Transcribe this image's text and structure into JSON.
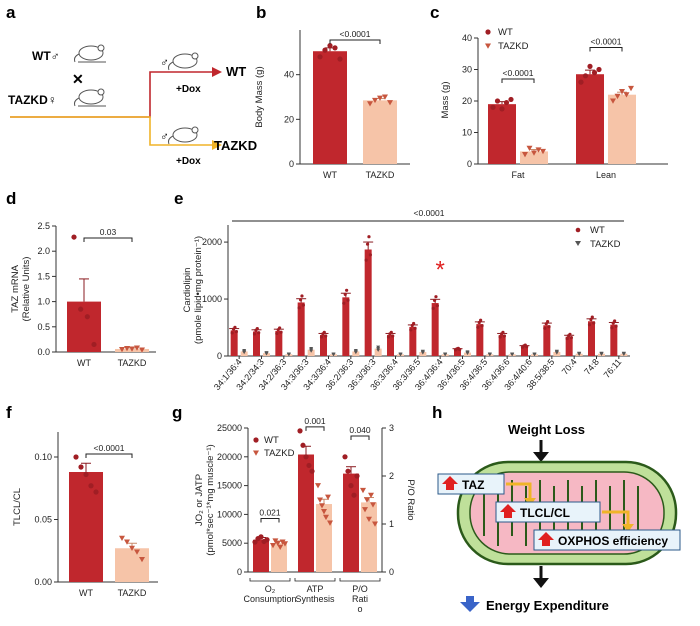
{
  "colors": {
    "wt": "#c0272d",
    "taz": "#f6c4a8",
    "wt_dot": "#a01e24",
    "taz_dot": "#c7563e",
    "mito_fill": "#bfe09a",
    "mito_stroke": "#2b5a1a",
    "mito_inner": "#f6b8c4",
    "red_arrow": "#e02020",
    "yellow_arrow": "#f0b428",
    "blue_arrow": "#3a64c8"
  },
  "panel_labels": {
    "a": "a",
    "b": "b",
    "c": "c",
    "d": "d",
    "e": "e",
    "f": "f",
    "g": "g",
    "h": "h"
  },
  "panel_a": {
    "wt_parent": "WT♂",
    "cross": "✕",
    "taz_parent": "TAZKD♀",
    "offspring_wt_symbol": "♂",
    "offspring_wt": "WT",
    "offspring_taz_symbol": "♂",
    "offspring_taz": "TAZKD",
    "dox_top": "+Dox",
    "dox_bottom": "+Dox"
  },
  "chart_data": [
    {
      "id": "b",
      "type": "bar",
      "categories": [
        "WT",
        "TAZKD"
      ],
      "values": [
        50.5,
        28.5
      ],
      "errors": [
        1.5,
        0.8
      ],
      "points": [
        [
          48,
          51,
          53,
          52,
          47
        ],
        [
          27,
          28.5,
          29.5,
          30,
          27.5
        ]
      ],
      "ylabel": "Body Mass (g)",
      "ylim": [
        0,
        60
      ],
      "yticks": [
        0,
        20,
        40
      ],
      "pvalues": [
        {
          "text": "<0.0001",
          "from": 0,
          "to": 1
        }
      ]
    },
    {
      "id": "c",
      "type": "bar",
      "categories": [
        "Fat",
        "Lean"
      ],
      "series": [
        {
          "name": "WT",
          "values": [
            19,
            28.5
          ],
          "errors": [
            0.8,
            1.3
          ],
          "points": [
            [
              18,
              20,
              17.5,
              19.5,
              20.5
            ],
            [
              26,
              28,
              31,
              29,
              30
            ]
          ]
        },
        {
          "name": "TAZKD",
          "values": [
            4,
            22
          ],
          "errors": [
            0.6,
            0.8
          ],
          "points": [
            [
              3,
              5,
              3.5,
              4.5,
              4
            ],
            [
              20,
              21.5,
              23,
              22,
              24
            ]
          ]
        }
      ],
      "ylabel": "Mass (g)",
      "ylim": [
        0,
        40
      ],
      "yticks": [
        0,
        10,
        20,
        30,
        40
      ],
      "legend": "top-left",
      "pvalues": [
        {
          "text": "<0.0001",
          "group": 0
        },
        {
          "text": "<0.0001",
          "group": 1
        }
      ]
    },
    {
      "id": "d",
      "type": "bar",
      "categories": [
        "WT",
        "TAZKD"
      ],
      "values": [
        1.0,
        0.06
      ],
      "errors": [
        0.45,
        0.02
      ],
      "points": [
        [
          2.28,
          0.85,
          0.7,
          0.15
        ],
        [
          0.05,
          0.07,
          0.06,
          0.08,
          0.04
        ]
      ],
      "ylabel": "TAZ mRNA\n(Relative Units)",
      "ylim": [
        0,
        2.5
      ],
      "yticks": [
        0.0,
        0.5,
        1.0,
        1.5,
        2.0,
        2.5
      ],
      "ytick_labels": [
        "0.0",
        "0.5",
        "1.0",
        "1.5",
        "2.0",
        "2.5"
      ],
      "pvalues": [
        {
          "text": "0.03",
          "from": 0,
          "to": 1
        }
      ]
    },
    {
      "id": "e",
      "type": "bar",
      "categories": [
        "34:1/36:4",
        "34:2/34:3",
        "34:2/36:3",
        "34:3/36:3",
        "34:3/36:4",
        "36:2/36:3",
        "36:3/36:3",
        "36:3/36:4",
        "36:3/36:5",
        "36:4/36:4",
        "36:4/36:5",
        "36:4/36:5",
        "36:4/36:6",
        "36:4/40:6",
        "38:5/38:5",
        "70:4",
        "74:8",
        "76:11"
      ],
      "series": [
        {
          "name": "WT",
          "values": [
            450,
            430,
            440,
            940,
            370,
            1030,
            1870,
            370,
            510,
            930,
            120,
            560,
            370,
            170,
            540,
            340,
            610,
            550
          ]
        },
        {
          "name": "TAZKD",
          "values": [
            80,
            50,
            30,
            110,
            30,
            80,
            130,
            30,
            70,
            30,
            60,
            30,
            30,
            30,
            70,
            40,
            40,
            40
          ]
        }
      ],
      "ylabel": "Cardiolipin\n(pmole lipid•mg protein⁻¹)",
      "ylim": [
        0,
        2300
      ],
      "yticks": [
        0,
        1000,
        2000
      ],
      "legend": "top-right",
      "pvalue": "<0.0001",
      "highlight": {
        "category_index": 9,
        "mark": "*"
      }
    },
    {
      "id": "f",
      "type": "bar",
      "categories": [
        "WT",
        "TAZKD"
      ],
      "values": [
        0.088,
        0.027
      ],
      "errors": [
        0.007,
        0.004
      ],
      "points": [
        [
          0.1,
          0.092,
          0.086,
          0.077,
          0.072
        ],
        [
          0.035,
          0.032,
          0.027,
          0.024,
          0.018
        ]
      ],
      "ylabel": "TLCL/CL",
      "ylim": [
        0,
        0.12
      ],
      "yticks": [
        0.0,
        0.05,
        0.1
      ],
      "ytick_labels": [
        "0.00",
        "0.05",
        "0.10"
      ],
      "pvalues": [
        {
          "text": "<0.0001",
          "from": 0,
          "to": 1
        }
      ]
    },
    {
      "id": "g",
      "type": "bar",
      "categories": [
        "O₂\nConsumption",
        "ATP\nSynthesis",
        "P/O\nRati\no"
      ],
      "series": [
        {
          "name": "WT",
          "values": [
            5600,
            20400,
            2.05
          ]
        },
        {
          "name": "TAZKD",
          "values": [
            5000,
            11800,
            1.45
          ]
        }
      ],
      "ylabel": "JO₂ or JATP\n(pmol*sec⁻¹*mg muscle⁻¹)",
      "ylim": [
        0,
        25000
      ],
      "yticks": [
        0,
        5000,
        10000,
        15000,
        20000,
        25000
      ],
      "y2label": "P/O Ratio",
      "y2lim": [
        0,
        3
      ],
      "y2ticks": [
        0,
        1,
        2,
        3
      ],
      "legend": "top-left",
      "pvalues": [
        {
          "text": "0.021",
          "group": 0
        },
        {
          "text": "0.001",
          "group": 1
        },
        {
          "text": "0.040",
          "group": 2
        }
      ]
    }
  ],
  "panel_h": {
    "weight_loss": "Weight Loss",
    "taz": "TAZ",
    "tlcl": "TLCL/CL",
    "oxphos": "OXPHOS efficiency",
    "energy": "Energy Expenditure"
  }
}
